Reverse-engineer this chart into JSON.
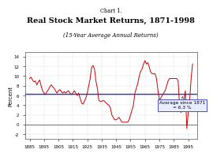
{
  "title_line1": "Chart 1.",
  "title_line2": "Real Stock Market Returns, 1871-1998",
  "subtitle": "(15-Year Average Annual Returns)",
  "ylabel": "Percent",
  "average_label": "Average since 1871\n= 6.3 %",
  "average_value": 6.3,
  "xlim": [
    1882,
    2001
  ],
  "ylim": [
    -3,
    15
  ],
  "yticks": [
    -2,
    0,
    2,
    4,
    6,
    8,
    10,
    12,
    14
  ],
  "xticks": [
    1885,
    1895,
    1905,
    1915,
    1925,
    1935,
    1945,
    1955,
    1965,
    1975,
    1985,
    1995
  ],
  "line_color": "#cc0000",
  "avg_line_color": "#3333bb",
  "zero_line_color": "#777777",
  "background_color": "#ffffff",
  "years": [
    1885,
    1886,
    1887,
    1888,
    1889,
    1890,
    1891,
    1892,
    1893,
    1894,
    1895,
    1896,
    1897,
    1898,
    1899,
    1900,
    1901,
    1902,
    1903,
    1904,
    1905,
    1906,
    1907,
    1908,
    1909,
    1910,
    1911,
    1912,
    1913,
    1914,
    1915,
    1916,
    1917,
    1918,
    1919,
    1920,
    1921,
    1922,
    1923,
    1924,
    1925,
    1926,
    1927,
    1928,
    1929,
    1930,
    1931,
    1932,
    1933,
    1934,
    1935,
    1936,
    1937,
    1938,
    1939,
    1940,
    1941,
    1942,
    1943,
    1944,
    1945,
    1946,
    1947,
    1948,
    1949,
    1950,
    1951,
    1952,
    1953,
    1954,
    1955,
    1956,
    1957,
    1958,
    1959,
    1960,
    1961,
    1962,
    1963,
    1964,
    1965,
    1966,
    1967,
    1968,
    1969,
    1970,
    1971,
    1972,
    1973,
    1974,
    1975,
    1976,
    1977,
    1978,
    1979,
    1980,
    1981,
    1982,
    1983,
    1984,
    1985,
    1986,
    1987,
    1988,
    1989,
    1990,
    1991,
    1992,
    1993,
    1994,
    1995,
    1996,
    1997,
    1998
  ],
  "values": [
    9.5,
    9.8,
    9.2,
    8.8,
    9.0,
    8.2,
    8.8,
    9.2,
    8.0,
    7.0,
    6.5,
    6.2,
    6.8,
    7.2,
    7.8,
    8.2,
    7.8,
    7.5,
    7.0,
    6.5,
    7.0,
    7.2,
    6.8,
    6.5,
    6.8,
    6.5,
    6.8,
    7.0,
    6.5,
    6.2,
    6.5,
    7.0,
    6.5,
    6.0,
    6.5,
    5.5,
    4.5,
    4.2,
    4.8,
    5.5,
    6.5,
    8.0,
    9.5,
    11.8,
    12.2,
    11.5,
    9.0,
    7.5,
    5.0,
    4.8,
    4.8,
    5.0,
    4.8,
    4.5,
    4.2,
    4.0,
    3.5,
    2.0,
    1.5,
    1.0,
    1.0,
    1.2,
    1.5,
    1.0,
    0.5,
    0.5,
    0.5,
    0.5,
    0.5,
    1.0,
    2.0,
    3.0,
    4.0,
    6.5,
    7.5,
    8.5,
    10.0,
    11.0,
    11.5,
    12.5,
    13.2,
    12.5,
    12.8,
    11.8,
    10.8,
    10.5,
    10.5,
    10.5,
    9.5,
    7.0,
    5.0,
    5.5,
    6.0,
    6.5,
    7.0,
    8.0,
    9.0,
    9.5,
    9.5,
    9.5,
    9.5,
    9.5,
    9.5,
    9.0,
    3.8,
    2.5,
    3.5,
    5.0,
    7.0,
    -0.8,
    2.5,
    5.0,
    9.5,
    12.5
  ]
}
